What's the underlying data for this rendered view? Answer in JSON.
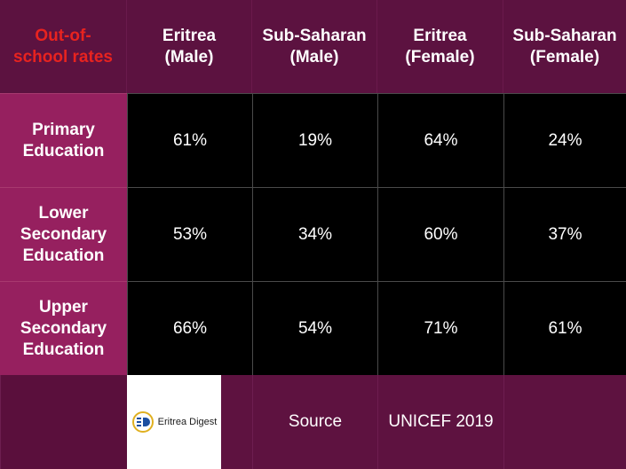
{
  "chart_data": {
    "type": "table",
    "corner_label": "Out-of-school rates",
    "columns": [
      "Eritrea (Male)",
      "Sub-Saharan (Male)",
      "Eritrea (Female)",
      "Sub-Saharan (Female)"
    ],
    "columns_lines": [
      [
        "Eritrea",
        "(Male)"
      ],
      [
        "Sub-Saharan",
        "(Male)"
      ],
      [
        "Eritrea",
        "(Female)"
      ],
      [
        "Sub-Saharan",
        "(Female)"
      ]
    ],
    "rows": [
      {
        "label_lines": [
          "Primary",
          "Education"
        ],
        "values": [
          "61%",
          "19%",
          "64%",
          "24%"
        ]
      },
      {
        "label_lines": [
          "Lower",
          "Secondary",
          "Education"
        ],
        "values": [
          "53%",
          "34%",
          "60%",
          "37%"
        ]
      },
      {
        "label_lines": [
          "Upper",
          "Secondary",
          "Education"
        ],
        "values": [
          "66%",
          "54%",
          "71%",
          "61%"
        ]
      }
    ]
  },
  "footer": {
    "logo_text": "Eritrea Digest",
    "source_label": "Source",
    "source_value": "UNICEF 2019"
  },
  "colors": {
    "corner_label": "#e8231f",
    "header_bg": "#5c1240",
    "row_header_bg": "#96205f",
    "value_bg": "#000000"
  }
}
